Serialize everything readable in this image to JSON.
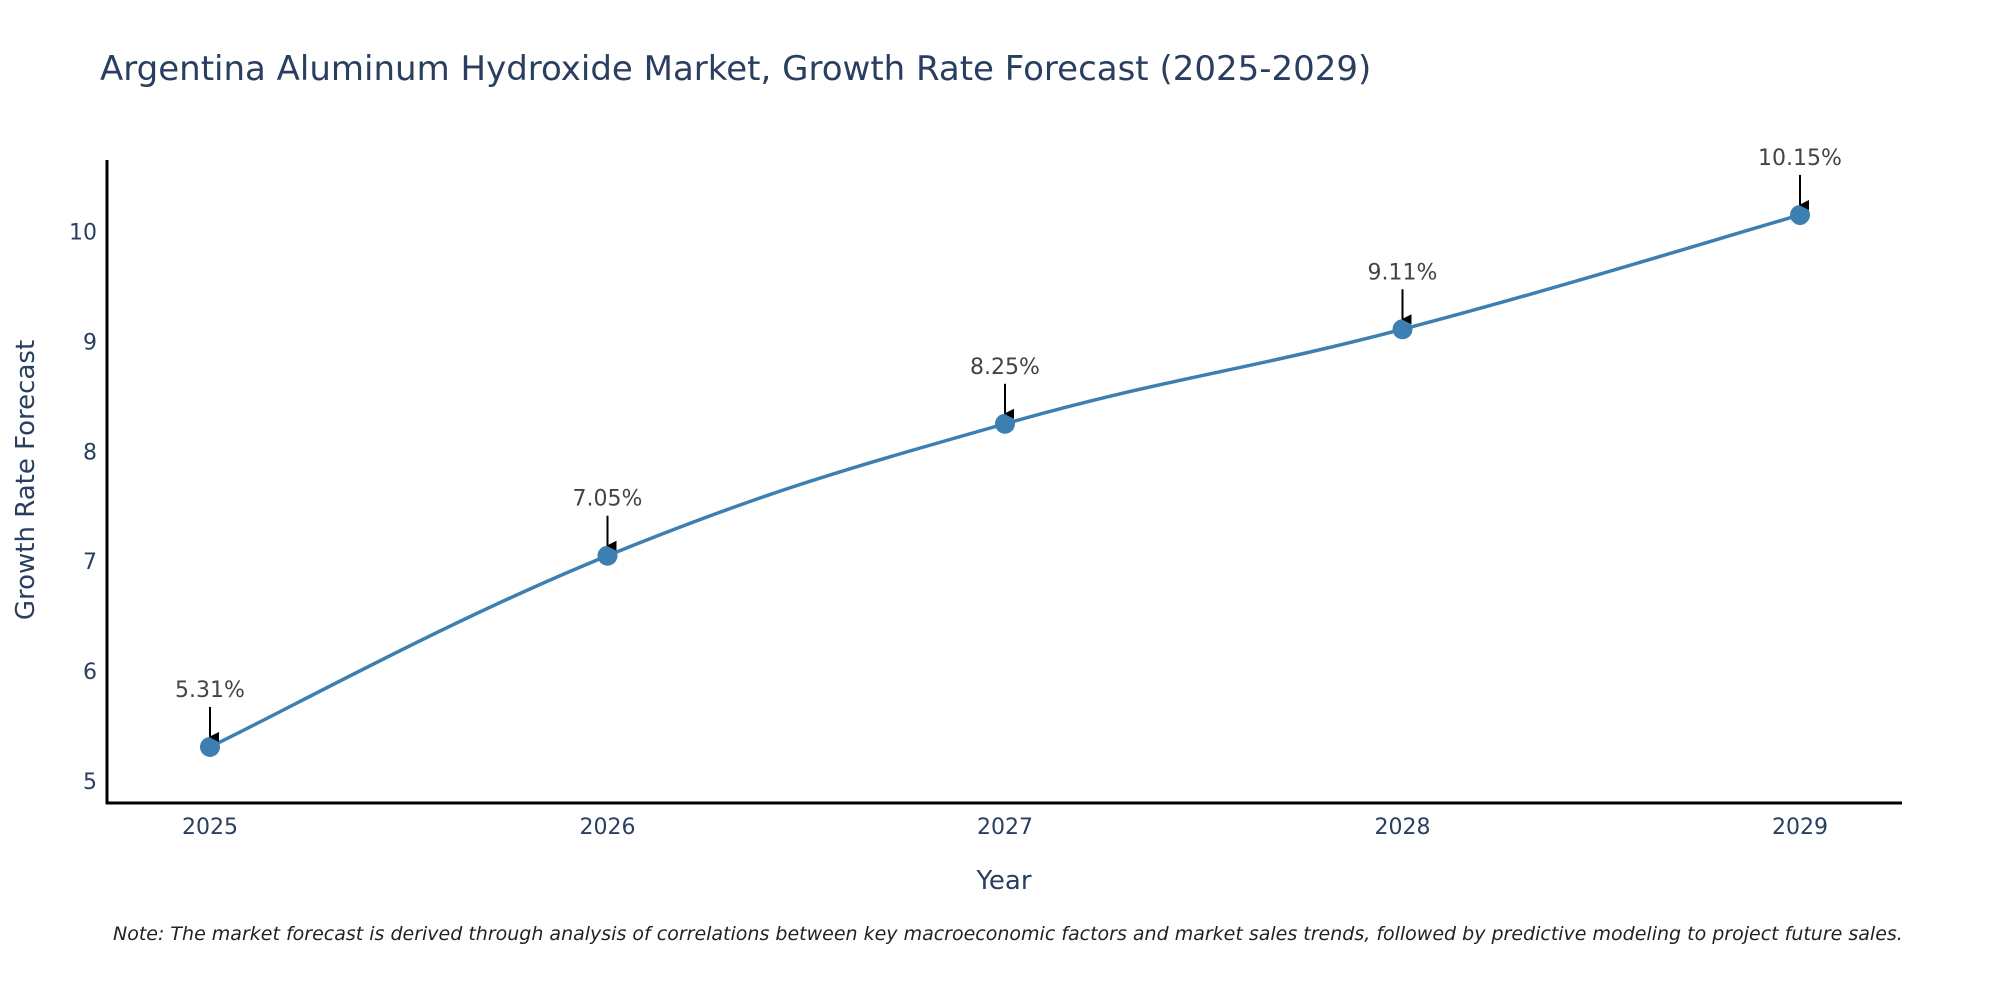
{
  "chart_data": {
    "type": "line",
    "title": "Argentina Aluminum Hydroxide Market, Growth Rate Forecast (2025-2029)",
    "xlabel": "Year",
    "ylabel": "Growth Rate Forecast",
    "x": [
      "2025",
      "2026",
      "2027",
      "2028",
      "2029"
    ],
    "values": [
      5.31,
      7.05,
      8.25,
      9.11,
      10.15
    ],
    "data_labels": [
      "5.31%",
      "7.05%",
      "8.25%",
      "9.11%",
      "10.15%"
    ],
    "yticks": [
      "5",
      "6",
      "7",
      "8",
      "9",
      "10"
    ],
    "ylim": [
      4.8,
      10.65
    ],
    "line_color": "#3d7fb0",
    "grid": false,
    "note": "Note: The market forecast is derived through analysis of correlations between key macroeconomic factors and market sales trends, followed by predictive modeling to project future sales."
  }
}
